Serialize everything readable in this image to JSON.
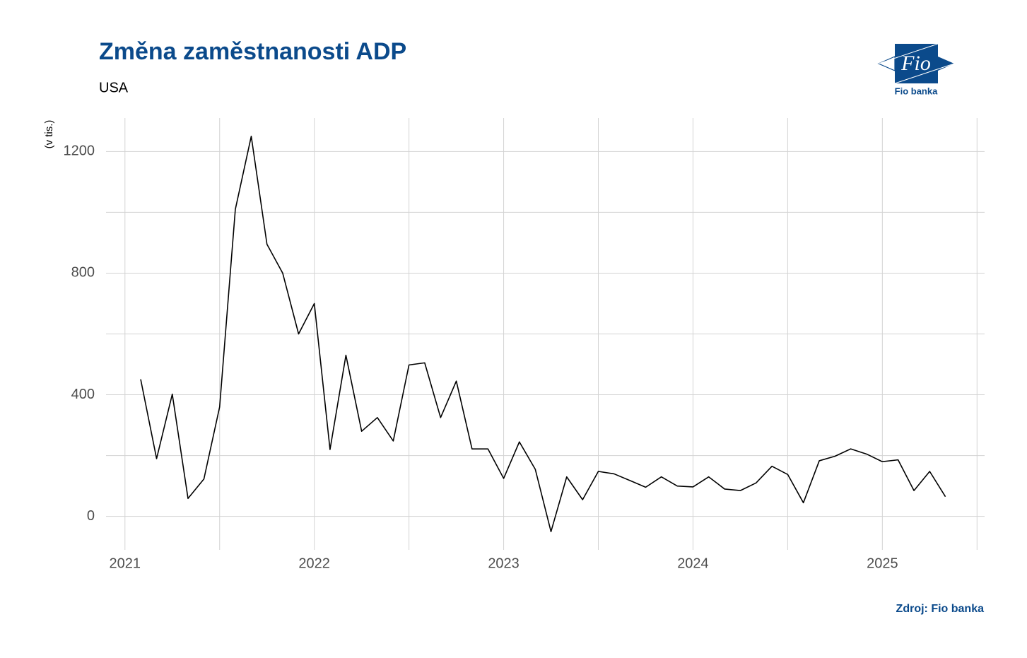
{
  "chart_data": {
    "type": "line",
    "title": "Změna zaměstnanosti ADP",
    "subtitle": "USA",
    "y_label": "(v tis.)",
    "source": "Zdroj: Fio banka",
    "logo_text": "Fio",
    "logo_caption": "Fio banka",
    "color": "#000000",
    "x": [
      2021.083,
      2021.167,
      2021.25,
      2021.333,
      2021.417,
      2021.5,
      2021.583,
      2021.667,
      2021.75,
      2021.833,
      2021.917,
      2022,
      2022.083,
      2022.167,
      2022.25,
      2022.333,
      2022.417,
      2022.5,
      2022.583,
      2022.667,
      2022.75,
      2022.833,
      2022.917,
      2023,
      2023.083,
      2023.167,
      2023.25,
      2023.333,
      2023.417,
      2023.5,
      2023.583,
      2023.667,
      2023.75,
      2023.833,
      2023.917,
      2024,
      2024.083,
      2024.167,
      2024.25,
      2024.333,
      2024.417,
      2024.5,
      2024.583,
      2024.667,
      2024.75,
      2024.833,
      2024.917,
      2025,
      2025.083,
      2025.167,
      2025.25,
      2025.333
    ],
    "values": [
      451,
      190,
      402,
      59,
      123,
      360,
      1010,
      1250,
      895,
      800,
      600,
      700,
      220,
      530,
      280,
      325,
      248,
      498,
      505,
      325,
      445,
      222,
      222,
      125,
      245,
      155,
      -50,
      130,
      55,
      148,
      140,
      118,
      96,
      130,
      100,
      97,
      130,
      90,
      85,
      110,
      165,
      138,
      45,
      183,
      198,
      222,
      205,
      180,
      186,
      85,
      148,
      65
    ],
    "xlim": [
      2020.9,
      2025.54
    ],
    "ylim": [
      -110,
      1310
    ],
    "xticks": [
      2021,
      2022,
      2023,
      2024,
      2025
    ],
    "yticks": [
      0,
      400,
      800,
      1200
    ],
    "x_minor_ticks": [
      2021.5,
      2022.5,
      2023.5,
      2024.5,
      2025.5
    ],
    "y_minor_ticks": [
      200,
      600,
      1000
    ],
    "grid": true
  }
}
